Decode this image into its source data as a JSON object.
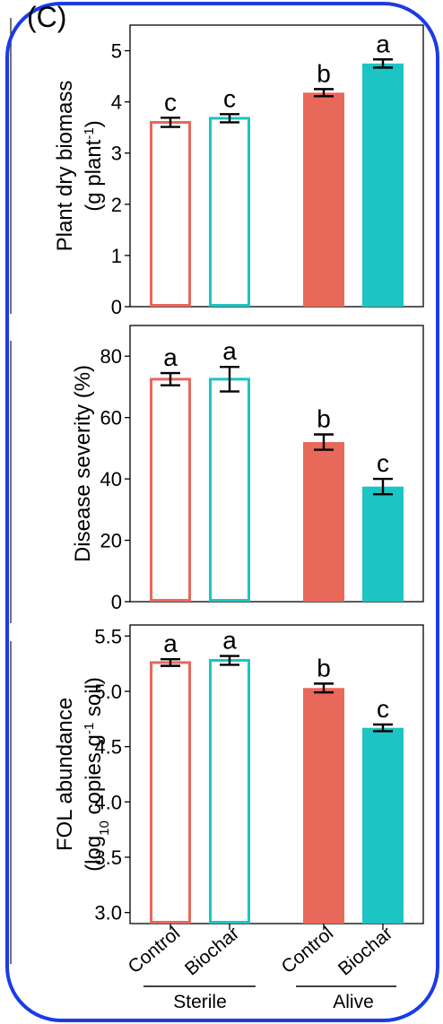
{
  "panel_label": "(C)",
  "colors": {
    "control": "#e8685a",
    "biochar": "#1cc4c4",
    "border": "#1a3be8",
    "error": "#000000"
  },
  "x_labels": [
    "Control",
    "Biochar",
    "Control",
    "Biochar"
  ],
  "groups": [
    "Sterile",
    "Alive"
  ],
  "chart_data": [
    {
      "type": "bar",
      "ylabel": [
        "Plant dry biomass",
        "(g plant-1)"
      ],
      "ylim": [
        0,
        5.5
      ],
      "yticks": [
        0,
        1,
        2,
        3,
        4,
        5
      ],
      "categories": [
        "Sterile Control",
        "Sterile Biochar",
        "Alive Control",
        "Alive Biochar"
      ],
      "values": [
        3.6,
        3.68,
        4.18,
        4.75
      ],
      "errors": [
        0.09,
        0.08,
        0.07,
        0.08
      ],
      "letters": [
        "c",
        "c",
        "b",
        "a"
      ],
      "fill": [
        "hollow",
        "hollow",
        "solid",
        "solid"
      ]
    },
    {
      "type": "bar",
      "ylabel": [
        "Disease severity (%)"
      ],
      "ylim": [
        0,
        90
      ],
      "yticks": [
        0,
        20,
        40,
        60,
        80
      ],
      "categories": [
        "Sterile Control",
        "Sterile Biochar",
        "Alive Control",
        "Alive Biochar"
      ],
      "values": [
        72.5,
        72.5,
        52,
        37.5
      ],
      "errors": [
        2,
        4,
        2.5,
        2.5
      ],
      "letters": [
        "a",
        "a",
        "b",
        "c"
      ],
      "fill": [
        "hollow",
        "hollow",
        "solid",
        "solid"
      ]
    },
    {
      "type": "bar",
      "ylabel": [
        "FOL abundance",
        "(log10 copies g-1 soil)"
      ],
      "ylim": [
        2.9,
        5.6
      ],
      "yticks": [
        3.0,
        3.5,
        4.0,
        4.5,
        5.0,
        5.5
      ],
      "categories": [
        "Sterile Control",
        "Sterile Biochar",
        "Alive Control",
        "Alive Biochar"
      ],
      "values": [
        5.26,
        5.28,
        5.03,
        4.67
      ],
      "errors": [
        0.03,
        0.04,
        0.04,
        0.03
      ],
      "letters": [
        "a",
        "a",
        "b",
        "c"
      ],
      "fill": [
        "hollow",
        "hollow",
        "solid",
        "solid"
      ]
    }
  ]
}
